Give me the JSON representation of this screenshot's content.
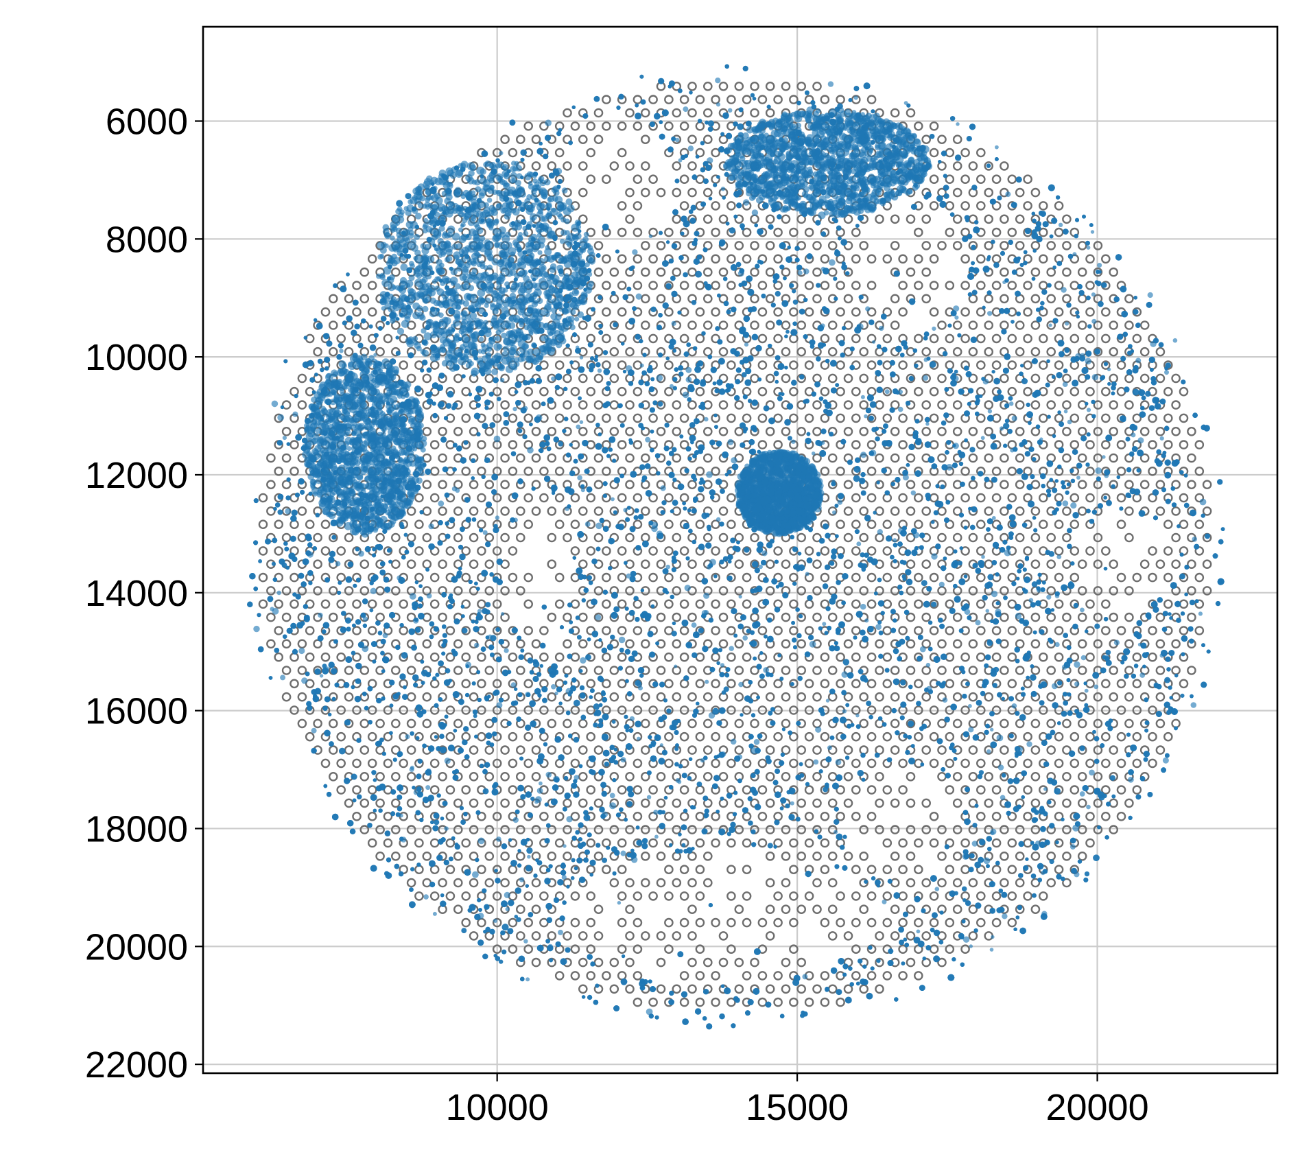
{
  "chart_data": {
    "type": "scatter",
    "title": "",
    "xlabel": "",
    "ylabel": "",
    "xlim": [
      5100,
      23000
    ],
    "ylim": [
      22150,
      4400
    ],
    "y_inverted": true,
    "grid": true,
    "legend": "none",
    "xticks": [
      10000,
      15000,
      20000
    ],
    "yticks": [
      6000,
      8000,
      10000,
      12000,
      14000,
      16000,
      18000,
      20000,
      22000
    ],
    "xtick_labels": [
      "10000",
      "15000",
      "20000"
    ],
    "ytick_labels": [
      "6000",
      "8000",
      "10000",
      "12000",
      "14000",
      "16000",
      "18000",
      "20000",
      "22000"
    ],
    "tissue_region": {
      "center": [
        13970,
        13220
      ],
      "radius": 8000,
      "spot_pitch": 260
    },
    "hollow_regions": [
      {
        "center": [
          12050,
          7000
        ],
        "radii": [
          900,
          1150
        ]
      },
      {
        "center": [
          16900,
          8400
        ],
        "radii": [
          950,
          1150
        ]
      },
      {
        "center": [
          10700,
          13700
        ],
        "radii": [
          550,
          1300
        ]
      },
      {
        "center": [
          13800,
          19500
        ],
        "radii": [
          2700,
          1150
        ]
      },
      {
        "center": [
          16800,
          17900
        ],
        "radii": [
          1000,
          1000
        ]
      },
      {
        "center": [
          20400,
          13500
        ],
        "radii": [
          800,
          900
        ]
      }
    ],
    "dense_regions": [
      {
        "center": [
          9800,
          8500
        ],
        "radii": [
          1800,
          1800
        ]
      },
      {
        "center": [
          15500,
          6700
        ],
        "radii": [
          1700,
          900
        ]
      },
      {
        "center": [
          7800,
          11500
        ],
        "radii": [
          1000,
          1500
        ]
      },
      {
        "center": [
          14700,
          12300
        ],
        "radii": [
          700,
          700
        ]
      }
    ],
    "series": [
      {
        "marker": "open circle",
        "color": "#6e6e6e"
      },
      {
        "marker": "filled dot",
        "color": "#1f77b4"
      }
    ]
  }
}
